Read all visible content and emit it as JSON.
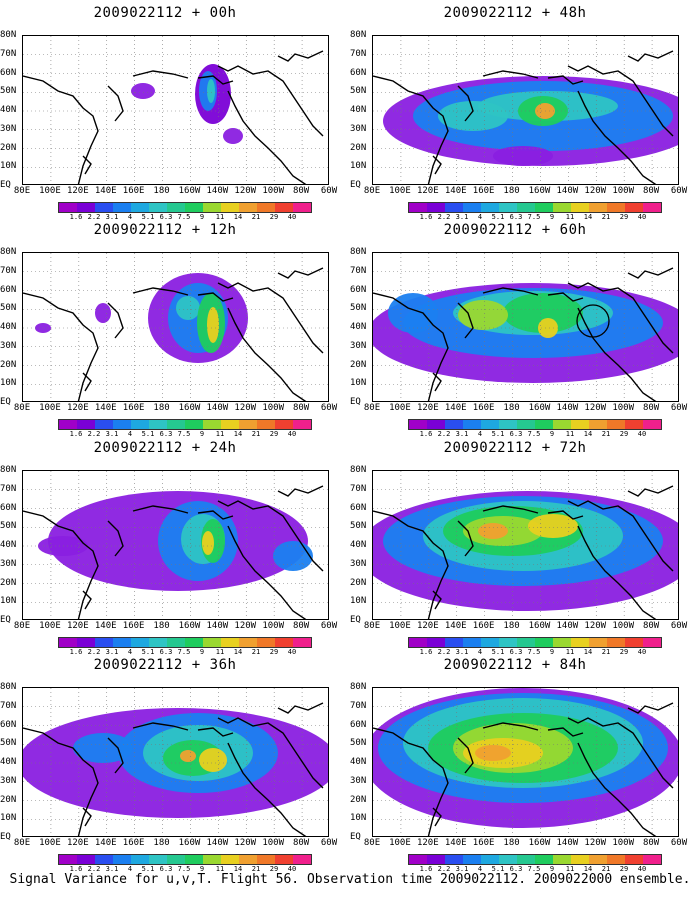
{
  "panels": [
    {
      "title": "2009022112 + 00h",
      "blobs": [
        [
          190,
          58,
          18,
          30,
          "#7a00d6"
        ],
        [
          185,
          55,
          9,
          20,
          "#1b7ff0"
        ],
        [
          188,
          55,
          4,
          12,
          "#2ec4c4"
        ],
        [
          120,
          55,
          12,
          8,
          "#8a1fe0"
        ],
        [
          210,
          100,
          10,
          8,
          "#8a1fe0"
        ]
      ],
      "circle": false
    },
    {
      "title": "2009022112 + 48h",
      "blobs": [
        [
          170,
          85,
          160,
          45,
          "#8a1fe0"
        ],
        [
          170,
          80,
          130,
          35,
          "#1b7ff0"
        ],
        [
          175,
          70,
          70,
          15,
          "#2ec4c4"
        ],
        [
          170,
          75,
          25,
          15,
          "#1fcc5e"
        ],
        [
          172,
          75,
          10,
          8,
          "#f0a030"
        ],
        [
          100,
          80,
          35,
          15,
          "#2ec4c4"
        ],
        [
          150,
          120,
          30,
          10,
          "#8a1fe0"
        ]
      ],
      "circle": false
    },
    {
      "title": "2009022112 + 12h",
      "blobs": [
        [
          175,
          65,
          50,
          45,
          "#8a1fe0"
        ],
        [
          175,
          65,
          30,
          35,
          "#1b7ff0"
        ],
        [
          165,
          55,
          12,
          12,
          "#2ec4c4"
        ],
        [
          188,
          70,
          14,
          30,
          "#1fcc5e"
        ],
        [
          190,
          72,
          6,
          18,
          "#e8d020"
        ],
        [
          20,
          75,
          8,
          5,
          "#8a1fe0"
        ],
        [
          80,
          60,
          8,
          10,
          "#8a1fe0"
        ]
      ],
      "circle": false
    },
    {
      "title": "2009022112 + 60h",
      "blobs": [
        [
          160,
          80,
          165,
          50,
          "#8a1fe0"
        ],
        [
          160,
          70,
          130,
          35,
          "#1b7ff0"
        ],
        [
          160,
          60,
          80,
          22,
          "#2ec4c4"
        ],
        [
          170,
          60,
          40,
          20,
          "#1fcc5e"
        ],
        [
          175,
          75,
          10,
          10,
          "#e8d020"
        ],
        [
          110,
          62,
          25,
          15,
          "#9ad830"
        ],
        [
          40,
          60,
          25,
          20,
          "#1b7ff0"
        ]
      ],
      "circle": true
    },
    {
      "title": "2009022112 + 24h",
      "blobs": [
        [
          155,
          70,
          130,
          50,
          "#8a1fe0"
        ],
        [
          175,
          70,
          40,
          40,
          "#1b7ff0"
        ],
        [
          180,
          68,
          22,
          25,
          "#2ec4c4"
        ],
        [
          190,
          70,
          12,
          22,
          "#1fcc5e"
        ],
        [
          185,
          72,
          6,
          12,
          "#e8d020"
        ],
        [
          40,
          75,
          25,
          10,
          "#8a1fe0"
        ],
        [
          270,
          85,
          20,
          15,
          "#1b7ff0"
        ]
      ],
      "circle": false
    },
    {
      "title": "2009022112 + 72h",
      "blobs": [
        [
          155,
          80,
          170,
          60,
          "#8a1fe0"
        ],
        [
          150,
          70,
          140,
          45,
          "#1b7ff0"
        ],
        [
          150,
          65,
          100,
          35,
          "#2ec4c4"
        ],
        [
          140,
          60,
          70,
          25,
          "#1fcc5e"
        ],
        [
          130,
          60,
          40,
          15,
          "#9ad830"
        ],
        [
          120,
          60,
          15,
          8,
          "#f0a030"
        ],
        [
          180,
          55,
          25,
          12,
          "#e8d020"
        ]
      ],
      "circle": false
    },
    {
      "title": "2009022112 + 36h",
      "blobs": [
        [
          155,
          75,
          160,
          55,
          "#8a1fe0"
        ],
        [
          175,
          65,
          80,
          40,
          "#1b7ff0"
        ],
        [
          175,
          65,
          55,
          28,
          "#2ec4c4"
        ],
        [
          170,
          70,
          30,
          18,
          "#1fcc5e"
        ],
        [
          190,
          72,
          14,
          12,
          "#e8d020"
        ],
        [
          165,
          68,
          8,
          6,
          "#f0a030"
        ],
        [
          80,
          60,
          30,
          15,
          "#1b7ff0"
        ]
      ],
      "circle": false
    },
    {
      "title": "2009022112 + 84h",
      "blobs": [
        [
          150,
          70,
          160,
          70,
          "#8a1fe0"
        ],
        [
          150,
          60,
          145,
          55,
          "#1b7ff0"
        ],
        [
          150,
          55,
          120,
          45,
          "#2ec4c4"
        ],
        [
          150,
          60,
          95,
          35,
          "#1fcc5e"
        ],
        [
          140,
          60,
          60,
          25,
          "#9ad830"
        ],
        [
          130,
          65,
          40,
          15,
          "#e8d020"
        ],
        [
          120,
          65,
          18,
          8,
          "#f0a030"
        ]
      ],
      "circle": false
    }
  ],
  "y_labels": [
    "80N",
    "70N",
    "60N",
    "50N",
    "40N",
    "30N",
    "20N",
    "10N",
    "EQ"
  ],
  "x_labels": [
    "80E",
    "100E",
    "120E",
    "140E",
    "160E",
    "180",
    "160W",
    "140W",
    "120W",
    "100W",
    "80W",
    "60W"
  ],
  "colorbar": {
    "colors": [
      "#a000c8",
      "#7a00d6",
      "#2a4ef0",
      "#1b7ff0",
      "#1ea8e0",
      "#2ec4c4",
      "#25c890",
      "#1fcc5e",
      "#9ad830",
      "#e8d020",
      "#f0a030",
      "#f07828",
      "#f04030",
      "#f0208c"
    ],
    "labels": [
      "1.6",
      "2.2",
      "3.1",
      "4",
      "5.1",
      "6.3",
      "7.5",
      "9",
      "11",
      "14",
      "21",
      "29",
      "40"
    ]
  },
  "footer": "Signal Variance for u,v,T. Flight 56. Observation time 2009022112. 2009022000 ensemble."
}
